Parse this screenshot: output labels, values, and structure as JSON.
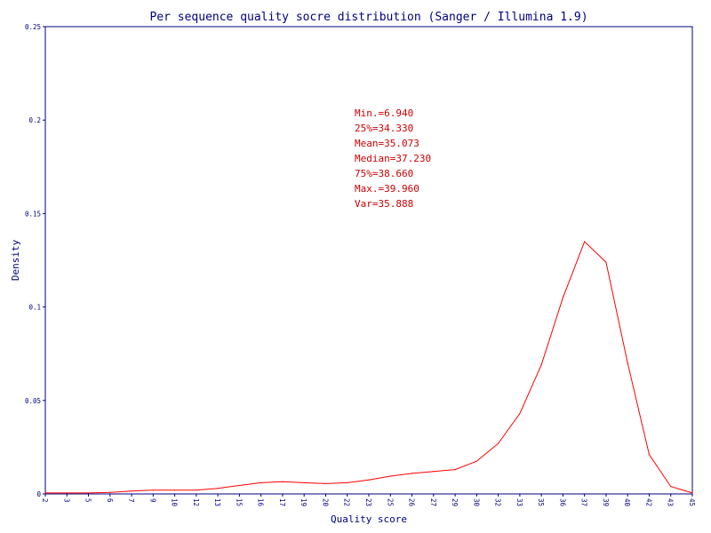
{
  "chart_data": {
    "type": "line",
    "title": "Per sequence quality socre distribution (Sanger / Illumina 1.9)",
    "xlabel": "Quality score",
    "ylabel": "Density",
    "ylim": [
      0,
      0.25
    ],
    "yticks": [
      "0",
      "0.05",
      "0.1",
      "0.15",
      "0.2",
      "0.25"
    ],
    "categories": [
      "2",
      "3",
      "5",
      "6",
      "7",
      "9",
      "10",
      "12",
      "13",
      "15",
      "16",
      "17",
      "19",
      "20",
      "22",
      "23",
      "25",
      "26",
      "27",
      "29",
      "30",
      "32",
      "33",
      "35",
      "36",
      "37",
      "39",
      "40",
      "42",
      "43",
      "45"
    ],
    "series": [
      {
        "color": "#ff0000",
        "values": [
          0.0005,
          0.0005,
          0.0005,
          0.0008,
          0.0015,
          0.002,
          0.002,
          0.002,
          0.003,
          0.0045,
          0.006,
          0.0065,
          0.006,
          0.0055,
          0.006,
          0.0075,
          0.0095,
          0.011,
          0.012,
          0.013,
          0.0175,
          0.027,
          0.043,
          0.069,
          0.105,
          0.135,
          0.124,
          0.07,
          0.021,
          0.004,
          0.0005
        ]
      }
    ],
    "annotations": [
      "Min.=6.940",
      "25%=34.330",
      "Mean=35.073",
      "Median=37.230",
      "75%=38.660",
      "Max.=39.960",
      "Var=35.888"
    ],
    "grid": false,
    "colors": {
      "axis": "#000080",
      "text": "#000080",
      "line": "#ff0000",
      "annotation": "#cc0000"
    }
  }
}
